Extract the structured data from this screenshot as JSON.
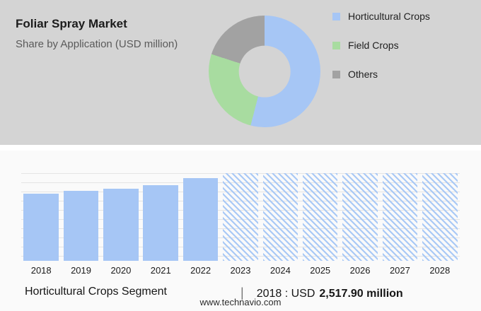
{
  "header": {
    "title": "Foliar Spray Market",
    "subtitle": "Share by Application (USD million)"
  },
  "caption": {
    "segment": "Horticultural Crops Segment",
    "divider": "|",
    "prefix": "2018 : USD",
    "value": "2,517.90 million"
  },
  "footer": {
    "url": "www.technavio.com"
  },
  "colors": {
    "panel_gray": "#d4d4d4",
    "series_blue": "#a6c6f5",
    "series_green": "#a8dca0",
    "series_gray": "#a2a2a2"
  },
  "chart_data": [
    {
      "type": "pie",
      "donut": true,
      "title": "Share by Application (USD million)",
      "labels": [
        "Horticultural Crops",
        "Field Crops",
        "Others"
      ],
      "values_pct": [
        54,
        26,
        20
      ],
      "colors": [
        "#a6c6f5",
        "#a8dca0",
        "#a2a2a2"
      ],
      "legend_position": "right"
    },
    {
      "type": "bar",
      "x": [
        "2018",
        "2019",
        "2020",
        "2021",
        "2022",
        "2023",
        "2024",
        "2025",
        "2026",
        "2027",
        "2028"
      ],
      "values_pct_of_max": [
        77,
        80,
        82,
        86,
        94,
        100,
        100,
        100,
        100,
        100,
        100
      ],
      "forecast_start": "2023",
      "bar_color": "#a6c6f5",
      "grid": true,
      "ylabel": "",
      "xlabel": "",
      "note": "No numeric y-axis shown; forecast years 2023-2028 rendered as hatched full-height bars"
    }
  ]
}
